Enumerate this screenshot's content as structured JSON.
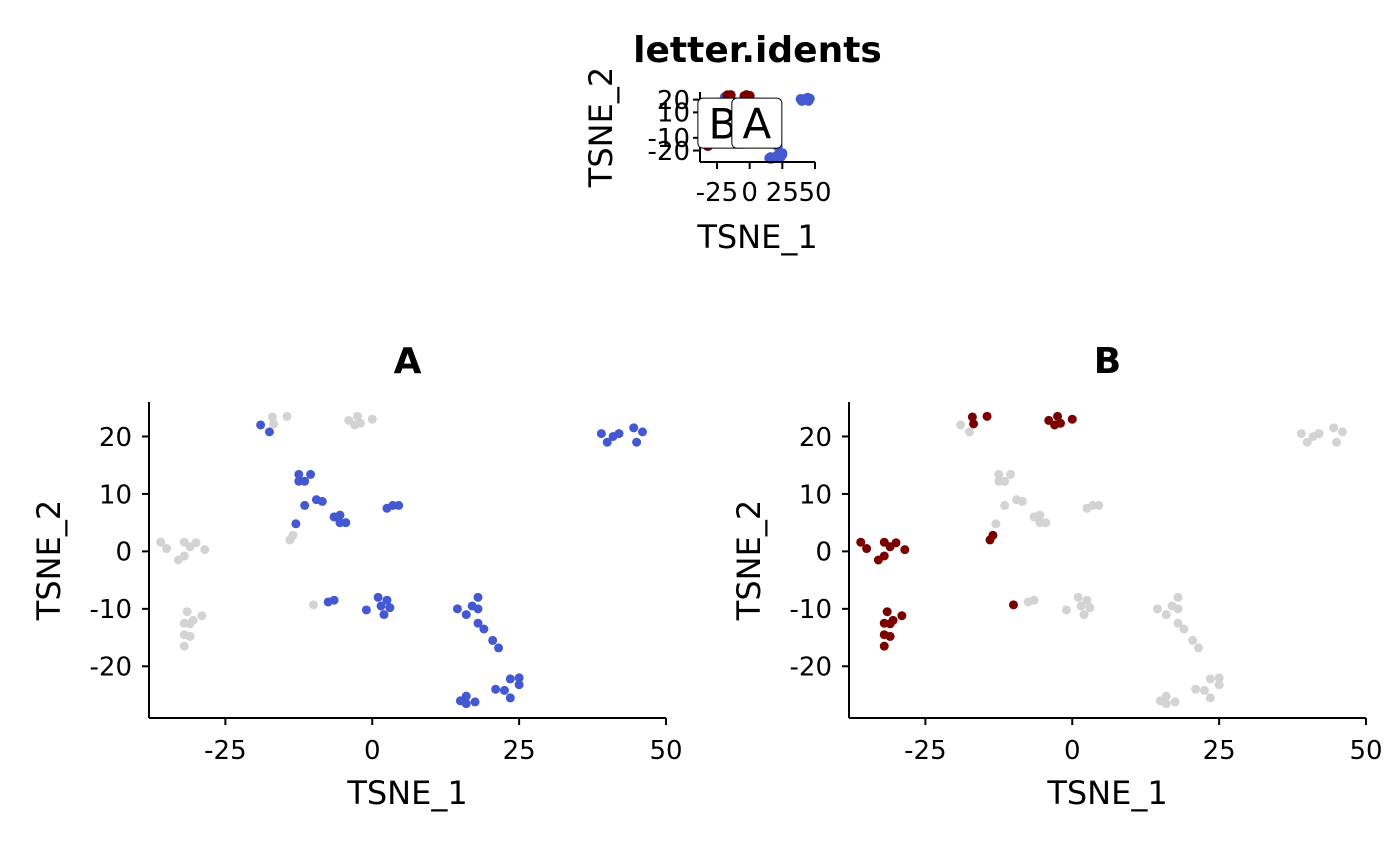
{
  "chart_data": [
    {
      "type": "scatter",
      "title": "letter.idents",
      "xlabel": "TSNE_1",
      "ylabel": "TSNE_2",
      "xlim": [
        -38,
        50
      ],
      "ylim": [
        -29,
        26
      ],
      "x_ticks": [
        -25,
        0,
        25,
        50
      ],
      "x_tick_labels": [
        "-25",
        "0",
        "25",
        "50"
      ],
      "y_ticks": [
        20,
        10,
        -10,
        -20
      ],
      "y_tick_labels": [
        "20",
        "10",
        "-10",
        "-20"
      ],
      "grid": false,
      "colors": {
        "A": "#4358d1",
        "B": "#7a0000"
      },
      "group_labels": [
        {
          "text": "B",
          "x": -20.5,
          "y": 1.5
        },
        {
          "text": "A",
          "x": 5.5,
          "y": 1.5
        }
      ],
      "series": [
        {
          "group": "A",
          "color": "#4358d1",
          "points": [
            [
              -19,
              22
            ],
            [
              -17.5,
              20.8
            ],
            [
              39,
              20.5
            ],
            [
              40,
              19
            ],
            [
              41,
              20
            ],
            [
              42,
              20.5
            ],
            [
              44.5,
              21.5
            ],
            [
              45,
              19
            ],
            [
              46,
              20.8
            ],
            [
              -12.5,
              13.4
            ],
            [
              -10.5,
              13.4
            ],
            [
              -12.5,
              12.2
            ],
            [
              -11.5,
              12.2
            ],
            [
              -9.5,
              9
            ],
            [
              -8.5,
              8.7
            ],
            [
              -11.5,
              8
            ],
            [
              -13,
              4.8
            ],
            [
              -6.5,
              6
            ],
            [
              -5.5,
              6.3
            ],
            [
              -5.5,
              5
            ],
            [
              -4.5,
              5
            ],
            [
              2.5,
              7.5
            ],
            [
              3.5,
              8
            ],
            [
              4.5,
              8
            ],
            [
              -6.5,
              -8.5
            ],
            [
              -7.5,
              -8.8
            ],
            [
              1,
              -8
            ],
            [
              2.5,
              -8.5
            ],
            [
              1.5,
              -9.5
            ],
            [
              3,
              -9.8
            ],
            [
              -1,
              -10.2
            ],
            [
              2,
              -11
            ],
            [
              14.5,
              -10
            ],
            [
              17,
              -9.5
            ],
            [
              18,
              -8
            ],
            [
              18,
              -10
            ],
            [
              16,
              -11
            ],
            [
              18,
              -12.5
            ],
            [
              19,
              -13.5
            ],
            [
              20.5,
              -15.5
            ],
            [
              21.5,
              -16.8
            ],
            [
              23.5,
              -22.2
            ],
            [
              25,
              -22
            ],
            [
              25,
              -23.2
            ],
            [
              21,
              -24
            ],
            [
              22.5,
              -24.2
            ],
            [
              23.5,
              -25.5
            ],
            [
              15,
              -26
            ],
            [
              16,
              -25.2
            ],
            [
              16,
              -26.5
            ],
            [
              17.5,
              -26.2
            ]
          ]
        },
        {
          "group": "B",
          "color": "#7a0000",
          "points": [
            [
              -17,
              23.4
            ],
            [
              -14.5,
              23.5
            ],
            [
              -16.8,
              22.2
            ],
            [
              -4,
              22.8
            ],
            [
              -2.5,
              23.5
            ],
            [
              -2,
              22.3
            ],
            [
              0,
              23
            ],
            [
              -3,
              22
            ],
            [
              -36,
              1.6
            ],
            [
              -35,
              0.5
            ],
            [
              -32,
              1.6
            ],
            [
              -31,
              0.8
            ],
            [
              -30,
              1.5
            ],
            [
              -28.5,
              0.3
            ],
            [
              -32,
              -0.8
            ],
            [
              -33,
              -1.5
            ],
            [
              -13.5,
              2.8
            ],
            [
              -14,
              2
            ],
            [
              -10,
              -9.3
            ],
            [
              -31.5,
              -10.5
            ],
            [
              -30.5,
              -12
            ],
            [
              -32,
              -12.5
            ],
            [
              -31,
              -12.6
            ],
            [
              -29,
              -11.2
            ],
            [
              -32,
              -14.5
            ],
            [
              -31,
              -14.8
            ],
            [
              -32,
              -16.5
            ]
          ]
        }
      ]
    },
    {
      "type": "scatter",
      "title": "A",
      "xlabel": "TSNE_1",
      "ylabel": "TSNE_2",
      "xlim": [
        -38,
        50
      ],
      "ylim": [
        -29,
        26
      ],
      "x_ticks": [
        -25,
        0,
        25,
        50
      ],
      "x_tick_labels": [
        "-25",
        "0",
        "25",
        "50"
      ],
      "y_ticks": [
        20,
        10,
        0,
        -10,
        -20
      ],
      "y_tick_labels": [
        "20",
        "10",
        "0",
        "-10",
        "-20"
      ],
      "grid": false,
      "colors": {
        "highlight": "#4358d1",
        "background": "#d3d3d3"
      },
      "series": [
        {
          "group": "background",
          "color": "#d3d3d3",
          "points": [
            [
              -17,
              23.4
            ],
            [
              -14.5,
              23.5
            ],
            [
              -16.8,
              22.2
            ],
            [
              -4,
              22.8
            ],
            [
              -2.5,
              23.5
            ],
            [
              -2,
              22.3
            ],
            [
              0,
              23
            ],
            [
              -3,
              22
            ],
            [
              -36,
              1.6
            ],
            [
              -35,
              0.5
            ],
            [
              -32,
              1.6
            ],
            [
              -31,
              0.8
            ],
            [
              -30,
              1.5
            ],
            [
              -28.5,
              0.3
            ],
            [
              -32,
              -0.8
            ],
            [
              -33,
              -1.5
            ],
            [
              -13.5,
              2.8
            ],
            [
              -14,
              2
            ],
            [
              -10,
              -9.3
            ],
            [
              -31.5,
              -10.5
            ],
            [
              -30.5,
              -12
            ],
            [
              -32,
              -12.5
            ],
            [
              -31,
              -12.6
            ],
            [
              -29,
              -11.2
            ],
            [
              -32,
              -14.5
            ],
            [
              -31,
              -14.8
            ],
            [
              -32,
              -16.5
            ]
          ]
        },
        {
          "group": "highlight",
          "color": "#4358d1",
          "points": [
            [
              -19,
              22
            ],
            [
              -17.5,
              20.8
            ],
            [
              39,
              20.5
            ],
            [
              40,
              19
            ],
            [
              41,
              20
            ],
            [
              42,
              20.5
            ],
            [
              44.5,
              21.5
            ],
            [
              45,
              19
            ],
            [
              46,
              20.8
            ],
            [
              -12.5,
              13.4
            ],
            [
              -10.5,
              13.4
            ],
            [
              -12.5,
              12.2
            ],
            [
              -11.5,
              12.2
            ],
            [
              -9.5,
              9
            ],
            [
              -8.5,
              8.7
            ],
            [
              -11.5,
              8
            ],
            [
              -13,
              4.8
            ],
            [
              -6.5,
              6
            ],
            [
              -5.5,
              6.3
            ],
            [
              -5.5,
              5
            ],
            [
              -4.5,
              5
            ],
            [
              2.5,
              7.5
            ],
            [
              3.5,
              8
            ],
            [
              4.5,
              8
            ],
            [
              -6.5,
              -8.5
            ],
            [
              -7.5,
              -8.8
            ],
            [
              1,
              -8
            ],
            [
              2.5,
              -8.5
            ],
            [
              1.5,
              -9.5
            ],
            [
              3,
              -9.8
            ],
            [
              -1,
              -10.2
            ],
            [
              2,
              -11
            ],
            [
              14.5,
              -10
            ],
            [
              17,
              -9.5
            ],
            [
              18,
              -8
            ],
            [
              18,
              -10
            ],
            [
              16,
              -11
            ],
            [
              18,
              -12.5
            ],
            [
              19,
              -13.5
            ],
            [
              20.5,
              -15.5
            ],
            [
              21.5,
              -16.8
            ],
            [
              23.5,
              -22.2
            ],
            [
              25,
              -22
            ],
            [
              25,
              -23.2
            ],
            [
              21,
              -24
            ],
            [
              22.5,
              -24.2
            ],
            [
              23.5,
              -25.5
            ],
            [
              15,
              -26
            ],
            [
              16,
              -25.2
            ],
            [
              16,
              -26.5
            ],
            [
              17.5,
              -26.2
            ]
          ]
        }
      ]
    },
    {
      "type": "scatter",
      "title": "B",
      "xlabel": "TSNE_1",
      "ylabel": "TSNE_2",
      "xlim": [
        -38,
        50
      ],
      "ylim": [
        -29,
        26
      ],
      "x_ticks": [
        -25,
        0,
        25,
        50
      ],
      "x_tick_labels": [
        "-25",
        "0",
        "25",
        "50"
      ],
      "y_ticks": [
        20,
        10,
        0,
        -10,
        -20
      ],
      "y_tick_labels": [
        "20",
        "10",
        "0",
        "-10",
        "-20"
      ],
      "grid": false,
      "colors": {
        "highlight": "#7a0000",
        "background": "#d3d3d3"
      },
      "series": [
        {
          "group": "background",
          "color": "#d3d3d3",
          "points": [
            [
              -19,
              22
            ],
            [
              -17.5,
              20.8
            ],
            [
              39,
              20.5
            ],
            [
              40,
              19
            ],
            [
              41,
              20
            ],
            [
              42,
              20.5
            ],
            [
              44.5,
              21.5
            ],
            [
              45,
              19
            ],
            [
              46,
              20.8
            ],
            [
              -12.5,
              13.4
            ],
            [
              -10.5,
              13.4
            ],
            [
              -12.5,
              12.2
            ],
            [
              -11.5,
              12.2
            ],
            [
              -9.5,
              9
            ],
            [
              -8.5,
              8.7
            ],
            [
              -11.5,
              8
            ],
            [
              -13,
              4.8
            ],
            [
              -6.5,
              6
            ],
            [
              -5.5,
              6.3
            ],
            [
              -5.5,
              5
            ],
            [
              -4.5,
              5
            ],
            [
              2.5,
              7.5
            ],
            [
              3.5,
              8
            ],
            [
              4.5,
              8
            ],
            [
              -6.5,
              -8.5
            ],
            [
              -7.5,
              -8.8
            ],
            [
              1,
              -8
            ],
            [
              2.5,
              -8.5
            ],
            [
              1.5,
              -9.5
            ],
            [
              3,
              -9.8
            ],
            [
              -1,
              -10.2
            ],
            [
              2,
              -11
            ],
            [
              14.5,
              -10
            ],
            [
              17,
              -9.5
            ],
            [
              18,
              -8
            ],
            [
              18,
              -10
            ],
            [
              16,
              -11
            ],
            [
              18,
              -12.5
            ],
            [
              19,
              -13.5
            ],
            [
              20.5,
              -15.5
            ],
            [
              21.5,
              -16.8
            ],
            [
              23.5,
              -22.2
            ],
            [
              25,
              -22
            ],
            [
              25,
              -23.2
            ],
            [
              21,
              -24
            ],
            [
              22.5,
              -24.2
            ],
            [
              23.5,
              -25.5
            ],
            [
              15,
              -26
            ],
            [
              16,
              -25.2
            ],
            [
              16,
              -26.5
            ],
            [
              17.5,
              -26.2
            ]
          ]
        },
        {
          "group": "highlight",
          "color": "#7a0000",
          "points": [
            [
              -17,
              23.4
            ],
            [
              -14.5,
              23.5
            ],
            [
              -16.8,
              22.2
            ],
            [
              -4,
              22.8
            ],
            [
              -2.5,
              23.5
            ],
            [
              -2,
              22.3
            ],
            [
              0,
              23
            ],
            [
              -3,
              22
            ],
            [
              -36,
              1.6
            ],
            [
              -35,
              0.5
            ],
            [
              -32,
              1.6
            ],
            [
              -31,
              0.8
            ],
            [
              -30,
              1.5
            ],
            [
              -28.5,
              0.3
            ],
            [
              -32,
              -0.8
            ],
            [
              -33,
              -1.5
            ],
            [
              -13.5,
              2.8
            ],
            [
              -14,
              2
            ],
            [
              -10,
              -9.3
            ],
            [
              -31.5,
              -10.5
            ],
            [
              -30.5,
              -12
            ],
            [
              -32,
              -12.5
            ],
            [
              -31,
              -12.6
            ],
            [
              -29,
              -11.2
            ],
            [
              -32,
              -14.5
            ],
            [
              -31,
              -14.8
            ],
            [
              -32,
              -16.5
            ]
          ]
        }
      ]
    }
  ]
}
